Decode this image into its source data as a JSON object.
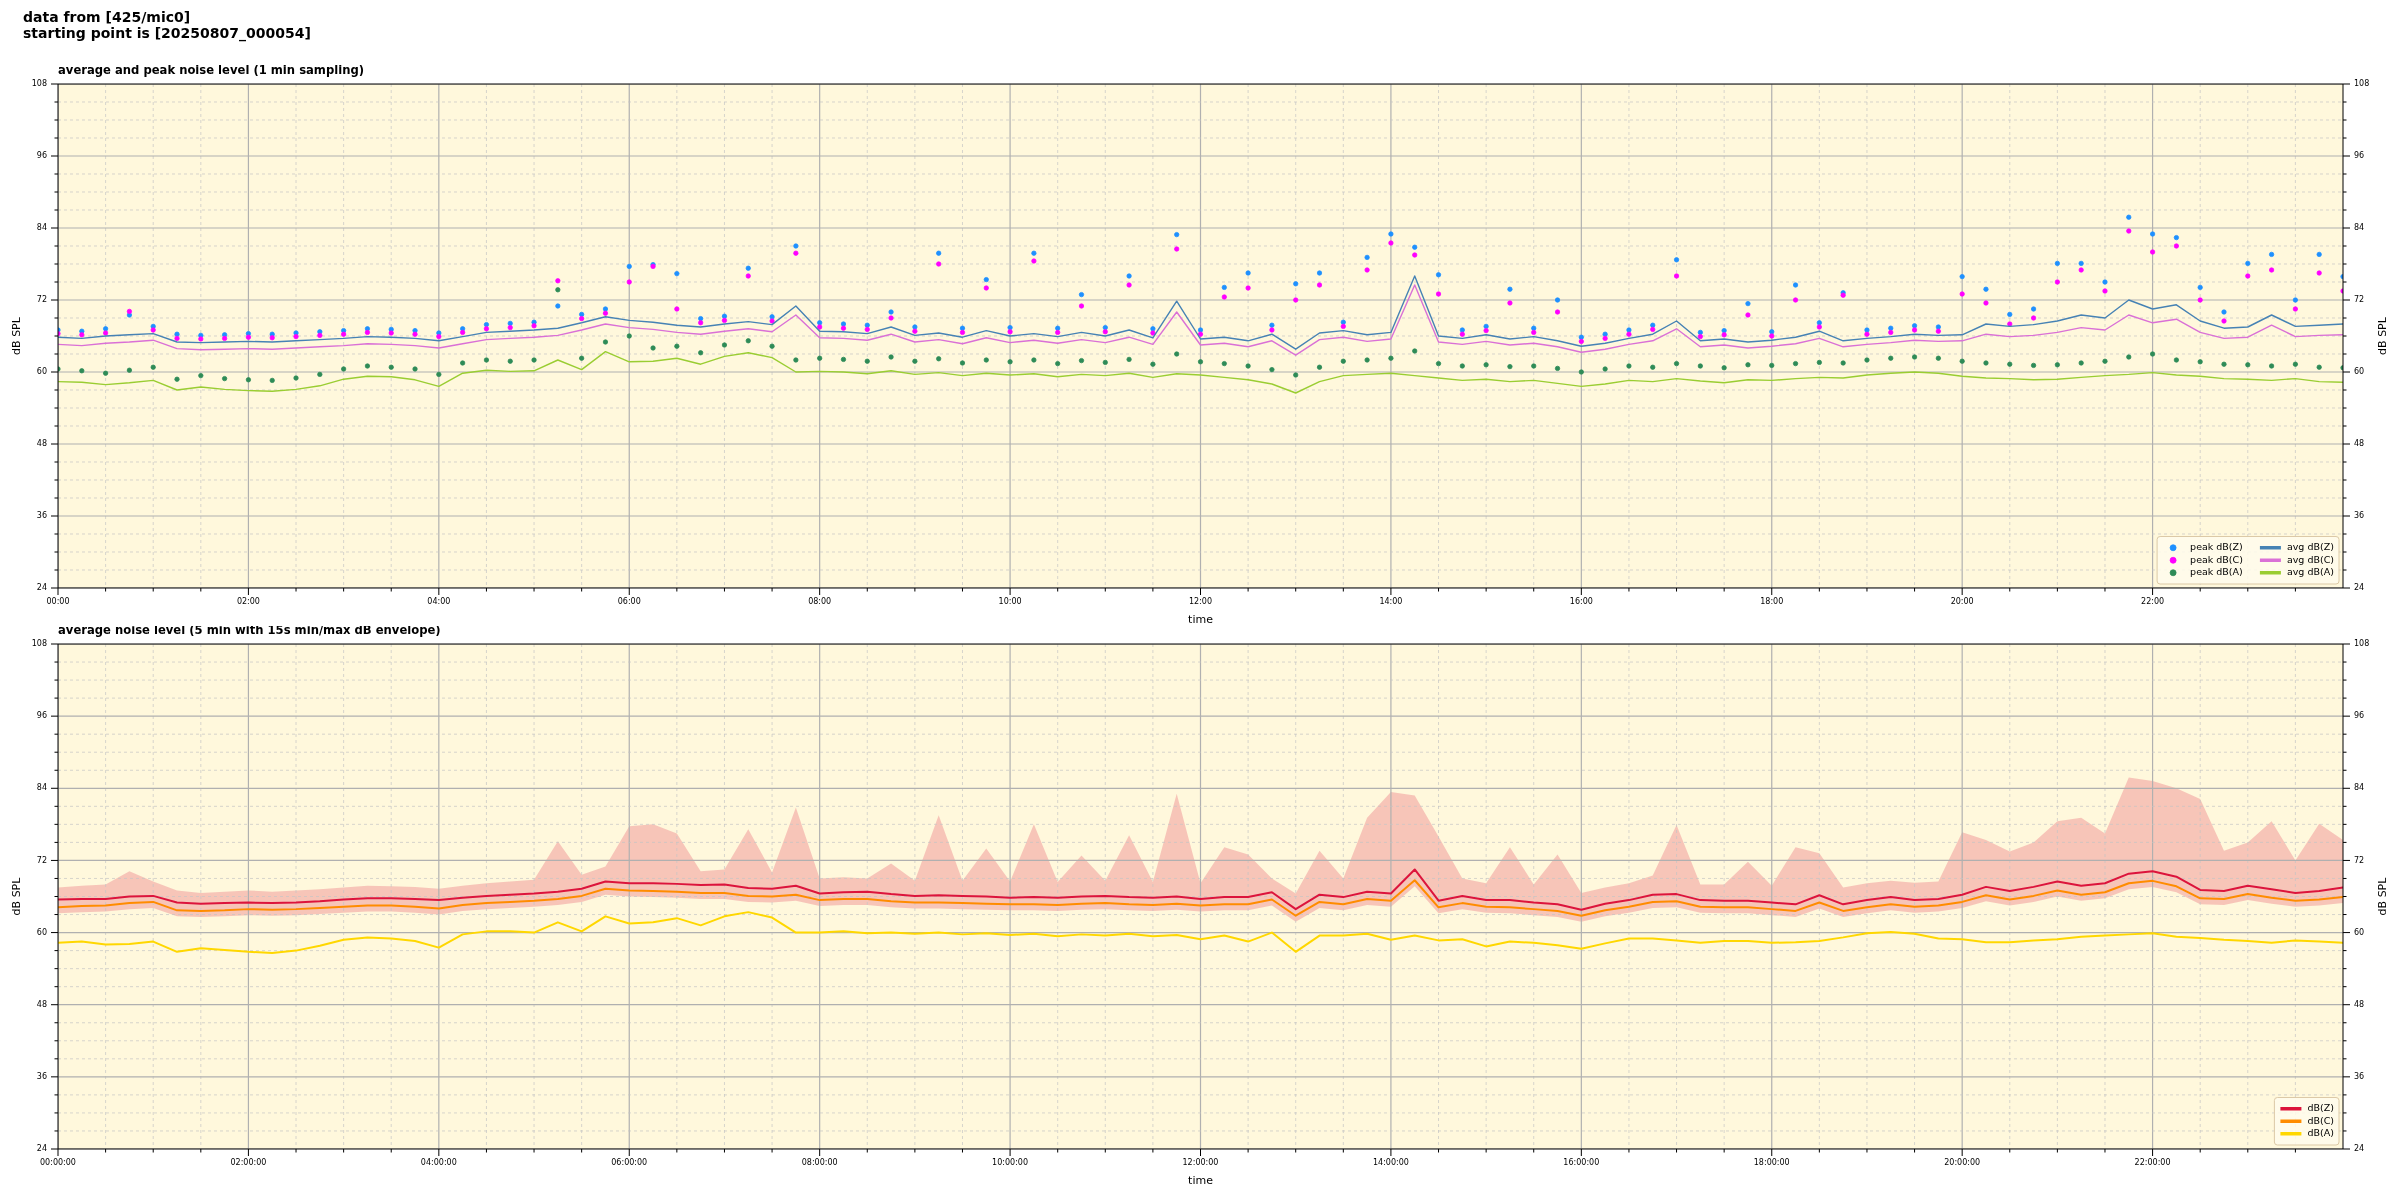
{
  "chart_data": [
    {
      "type": "line",
      "title": "average and peak noise level (1 min sampling)",
      "xlabel": "time",
      "ylabel": "dB SPL",
      "y2label": "dB SPL",
      "annotations": [
        "data from [425/mic0]",
        "starting point is [20250807_000054]"
      ],
      "x": [
        0,
        0.25,
        0.5,
        0.75,
        1,
        1.25,
        1.5,
        1.75,
        2,
        2.25,
        2.5,
        2.75,
        3,
        3.25,
        3.5,
        3.75,
        4,
        4.25,
        4.5,
        4.75,
        5,
        5.25,
        5.5,
        5.75,
        6,
        6.25,
        6.5,
        6.75,
        7,
        7.25,
        7.5,
        7.75,
        8,
        8.25,
        8.5,
        8.75,
        9,
        9.25,
        9.5,
        9.75,
        10,
        10.25,
        10.5,
        10.75,
        11,
        11.25,
        11.5,
        11.75,
        12,
        12.25,
        12.5,
        12.75,
        13,
        13.25,
        13.5,
        13.75,
        14,
        14.25,
        14.5,
        14.75,
        15,
        15.25,
        15.5,
        15.75,
        16,
        16.25,
        16.5,
        16.75,
        17,
        17.25,
        17.5,
        17.75,
        18,
        18.25,
        18.5,
        18.75,
        19,
        19.25,
        19.5,
        19.75,
        20,
        20.25,
        20.5,
        20.75,
        21,
        21.25,
        21.5,
        21.75,
        22,
        22.25,
        22.5,
        22.75,
        23,
        23.25,
        23.5,
        23.75,
        24
      ],
      "series": [
        {
          "name": "peak dB(Z)",
          "type": "scatter",
          "marker": "circle",
          "color": "#1e90ff",
          "values": [
            67.0,
            66.8,
            67.2,
            69.5,
            67.6,
            66.3,
            66.1,
            66.2,
            66.4,
            66.3,
            66.5,
            66.7,
            66.9,
            67.2,
            67.1,
            66.9,
            66.5,
            67.2,
            67.9,
            68.1,
            68.3,
            71.0,
            69.6,
            70.5,
            77.6,
            77.9,
            76.4,
            68.9,
            69.3,
            77.3,
            69.2,
            81.0,
            68.2,
            68.0,
            67.8,
            70.0,
            67.5,
            79.8,
            67.3,
            75.4,
            67.4,
            79.8,
            67.3,
            72.9,
            67.4,
            76.0,
            67.2,
            82.9,
            67.0,
            74.1,
            76.5,
            67.8,
            74.7,
            76.5,
            68.3,
            79.1,
            83.0,
            80.8,
            76.2,
            67.0,
            67.6,
            73.8,
            67.3,
            72.0,
            65.8,
            66.3,
            67.0,
            67.8,
            78.7,
            66.6,
            66.9,
            71.4,
            66.7,
            74.5,
            68.2,
            73.2,
            67.0,
            67.3,
            67.7,
            67.5,
            75.9,
            73.8,
            69.6,
            70.5,
            78.1,
            78.1,
            75.0,
            85.8,
            83.0,
            82.4,
            74.1,
            70.0,
            78.1,
            79.6,
            72.0,
            79.6,
            75.9
          ]
        },
        {
          "name": "peak dB(C)",
          "type": "scatter",
          "marker": "circle",
          "color": "#ff00ff",
          "values": [
            66.4,
            66.2,
            66.5,
            70.1,
            67.0,
            65.6,
            65.5,
            65.6,
            65.8,
            65.7,
            65.9,
            66.1,
            66.3,
            66.6,
            66.5,
            66.3,
            65.9,
            66.6,
            67.2,
            67.4,
            67.7,
            75.2,
            68.9,
            69.8,
            75.0,
            77.6,
            70.5,
            68.2,
            68.6,
            76.0,
            68.5,
            79.8,
            67.5,
            67.3,
            67.1,
            69.0,
            66.8,
            78.0,
            66.6,
            74.0,
            66.7,
            78.5,
            66.6,
            71.0,
            66.7,
            74.5,
            66.5,
            80.5,
            66.3,
            72.5,
            74.0,
            67.0,
            72.0,
            74.5,
            67.6,
            77.0,
            81.5,
            79.5,
            73.0,
            66.3,
            66.9,
            71.5,
            66.6,
            70.0,
            65.1,
            65.6,
            66.3,
            67.1,
            76.0,
            65.9,
            66.2,
            69.5,
            66.0,
            72.0,
            67.5,
            72.8,
            66.3,
            66.6,
            67.0,
            66.8,
            73.0,
            71.5,
            68.0,
            69.0,
            75.0,
            77.0,
            73.5,
            83.5,
            80.0,
            81.0,
            72.0,
            68.5,
            76.0,
            77.0,
            70.5,
            76.5,
            73.5
          ]
        },
        {
          "name": "peak dB(A)",
          "type": "scatter",
          "marker": "circle",
          "color": "#2e8b57",
          "values": [
            60.5,
            60.2,
            59.8,
            60.3,
            60.8,
            58.8,
            59.4,
            58.9,
            58.7,
            58.6,
            59.0,
            59.6,
            60.5,
            61.0,
            60.8,
            60.5,
            59.6,
            61.5,
            62.0,
            61.8,
            62.0,
            73.7,
            62.3,
            65.0,
            66.0,
            64.0,
            64.3,
            63.2,
            64.5,
            65.2,
            64.3,
            62.0,
            62.3,
            62.1,
            61.8,
            62.5,
            61.8,
            62.2,
            61.5,
            62.0,
            61.7,
            62.0,
            61.4,
            61.9,
            61.6,
            62.1,
            61.3,
            63.0,
            61.7,
            61.4,
            61.0,
            60.4,
            59.5,
            60.8,
            61.8,
            62.0,
            62.3,
            63.5,
            61.4,
            61.0,
            61.2,
            60.9,
            61.0,
            60.6,
            60.0,
            60.5,
            61.0,
            60.8,
            61.4,
            61.0,
            60.7,
            61.2,
            61.1,
            61.4,
            61.6,
            61.5,
            62.0,
            62.3,
            62.5,
            62.3,
            61.8,
            61.5,
            61.3,
            61.1,
            61.2,
            61.5,
            61.8,
            62.5,
            63.0,
            62.0,
            61.7,
            61.3,
            61.2,
            61.0,
            61.3,
            60.8,
            60.7
          ]
        },
        {
          "name": "avg dB(Z)",
          "color": "#4682b4",
          "values": [
            65.8,
            65.6,
            66.0,
            66.2,
            66.4,
            65.0,
            64.9,
            65.0,
            65.1,
            65.0,
            65.2,
            65.4,
            65.6,
            65.9,
            65.8,
            65.6,
            65.2,
            65.9,
            66.6,
            66.8,
            67.0,
            67.3,
            68.2,
            69.2,
            68.6,
            68.3,
            67.8,
            67.5,
            68.0,
            68.4,
            67.9,
            71.0,
            66.8,
            66.7,
            66.4,
            67.5,
            66.1,
            66.5,
            65.8,
            66.9,
            66.0,
            66.4,
            65.9,
            66.6,
            66.0,
            67.0,
            65.7,
            71.8,
            65.5,
            65.8,
            65.2,
            66.3,
            63.8,
            66.5,
            66.9,
            66.2,
            66.6,
            76.0,
            66.0,
            65.6,
            66.2,
            65.5,
            65.9,
            65.2,
            64.3,
            64.8,
            65.6,
            66.3,
            68.5,
            65.2,
            65.5,
            65.0,
            65.3,
            65.8,
            66.8,
            65.2,
            65.6,
            65.9,
            66.3,
            66.1,
            66.2,
            68.0,
            67.6,
            67.9,
            68.5,
            69.5,
            69.0,
            72.0,
            70.5,
            71.2,
            68.5,
            67.3,
            67.5,
            69.5,
            67.6,
            67.8,
            68.0
          ]
        },
        {
          "name": "avg dB(C)",
          "color": "#da70d6",
          "values": [
            64.6,
            64.4,
            64.8,
            65.0,
            65.3,
            63.9,
            63.7,
            63.8,
            63.9,
            63.8,
            64.0,
            64.2,
            64.4,
            64.7,
            64.6,
            64.4,
            64.0,
            64.7,
            65.4,
            65.6,
            65.8,
            66.1,
            67.0,
            68.0,
            67.4,
            67.1,
            66.6,
            66.3,
            66.8,
            67.2,
            66.7,
            69.5,
            65.7,
            65.6,
            65.3,
            66.3,
            65.0,
            65.4,
            64.7,
            65.7,
            64.9,
            65.3,
            64.8,
            65.4,
            64.9,
            65.8,
            64.6,
            70.0,
            64.5,
            64.8,
            64.2,
            65.2,
            62.8,
            65.4,
            65.8,
            65.1,
            65.5,
            74.5,
            65.0,
            64.6,
            65.1,
            64.5,
            64.8,
            64.2,
            63.3,
            63.8,
            64.6,
            65.2,
            67.2,
            64.2,
            64.5,
            64.0,
            64.3,
            64.7,
            65.6,
            64.2,
            64.6,
            64.9,
            65.3,
            65.1,
            65.2,
            66.3,
            65.9,
            66.1,
            66.6,
            67.4,
            67.0,
            69.5,
            68.2,
            68.8,
            66.6,
            65.6,
            65.8,
            67.8,
            65.9,
            66.1,
            66.2
          ]
        },
        {
          "name": "avg dB(A)",
          "color": "#9acd32",
          "values": [
            58.4,
            58.3,
            57.9,
            58.2,
            58.6,
            57.0,
            57.5,
            57.1,
            56.9,
            56.8,
            57.1,
            57.7,
            58.8,
            59.3,
            59.2,
            58.7,
            57.6,
            59.8,
            60.3,
            60.1,
            60.2,
            62.0,
            60.4,
            63.4,
            61.7,
            61.8,
            62.3,
            61.3,
            62.6,
            63.2,
            62.4,
            60.0,
            60.1,
            60.0,
            59.7,
            60.2,
            59.6,
            59.9,
            59.4,
            59.8,
            59.5,
            59.7,
            59.2,
            59.6,
            59.4,
            59.8,
            59.1,
            59.7,
            59.5,
            59.1,
            58.7,
            58.0,
            56.5,
            58.4,
            59.4,
            59.6,
            59.8,
            59.4,
            59.0,
            58.6,
            58.8,
            58.4,
            58.6,
            58.1,
            57.6,
            58.0,
            58.6,
            58.4,
            58.9,
            58.5,
            58.2,
            58.7,
            58.6,
            58.9,
            59.1,
            59.0,
            59.5,
            59.8,
            60.0,
            59.8,
            59.3,
            59.0,
            58.9,
            58.7,
            58.8,
            59.1,
            59.4,
            59.6,
            59.9,
            59.5,
            59.3,
            58.9,
            58.8,
            58.6,
            58.9,
            58.4,
            58.3
          ]
        }
      ],
      "xlim": [
        0,
        24
      ],
      "xticks": [
        {
          "value": 0,
          "label": "00:00"
        },
        {
          "value": 0.5,
          "label": null
        },
        {
          "value": 1,
          "label": null
        },
        {
          "value": 1.5,
          "label": null
        },
        {
          "value": 2,
          "label": "02:00"
        },
        {
          "value": 2.5,
          "label": null
        },
        {
          "value": 3,
          "label": null
        },
        {
          "value": 3.5,
          "label": null
        },
        {
          "value": 4,
          "label": "04:00"
        },
        {
          "value": 4.5,
          "label": null
        },
        {
          "value": 5,
          "label": null
        },
        {
          "value": 5.5,
          "label": null
        },
        {
          "value": 6,
          "label": "06:00"
        },
        {
          "value": 6.5,
          "label": null
        },
        {
          "value": 7,
          "label": null
        },
        {
          "value": 7.5,
          "label": null
        },
        {
          "value": 8,
          "label": "08:00"
        },
        {
          "value": 8.5,
          "label": null
        },
        {
          "value": 9,
          "label": null
        },
        {
          "value": 9.5,
          "label": null
        },
        {
          "value": 10,
          "label": "10:00"
        },
        {
          "value": 10.5,
          "label": null
        },
        {
          "value": 11,
          "label": null
        },
        {
          "value": 11.5,
          "label": null
        },
        {
          "value": 12,
          "label": "12:00"
        },
        {
          "value": 12.5,
          "label": null
        },
        {
          "value": 13,
          "label": null
        },
        {
          "value": 13.5,
          "label": null
        },
        {
          "value": 14,
          "label": "14:00"
        },
        {
          "value": 14.5,
          "label": null
        },
        {
          "value": 15,
          "label": null
        },
        {
          "value": 15.5,
          "label": null
        },
        {
          "value": 16,
          "label": "16:00"
        },
        {
          "value": 16.5,
          "label": null
        },
        {
          "value": 17,
          "label": null
        },
        {
          "value": 17.5,
          "label": null
        },
        {
          "value": 18,
          "label": "18:00"
        },
        {
          "value": 18.5,
          "label": null
        },
        {
          "value": 19,
          "label": null
        },
        {
          "value": 19.5,
          "label": null
        },
        {
          "value": 20,
          "label": "20:00"
        },
        {
          "value": 20.5,
          "label": null
        },
        {
          "value": 21,
          "label": null
        },
        {
          "value": 21.5,
          "label": null
        },
        {
          "value": 22,
          "label": "22:00"
        },
        {
          "value": 22.5,
          "label": null
        },
        {
          "value": 23,
          "label": null
        },
        {
          "value": 23.5,
          "label": null
        }
      ],
      "ylim": [
        24,
        108
      ],
      "yticks": [
        24,
        {
          "value": 27,
          "label": null
        },
        {
          "value": 30,
          "label": null
        },
        {
          "value": 33,
          "label": null
        },
        36,
        {
          "value": 39,
          "label": null
        },
        {
          "value": 42,
          "label": null
        },
        {
          "value": 45,
          "label": null
        },
        48,
        {
          "value": 51,
          "label": null
        },
        {
          "value": 54,
          "label": null
        },
        {
          "value": 57,
          "label": null
        },
        60,
        {
          "value": 63,
          "label": null
        },
        {
          "value": 66,
          "label": null
        },
        {
          "value": 69,
          "label": null
        },
        72,
        {
          "value": 75,
          "label": null
        },
        {
          "value": 78,
          "label": null
        },
        {
          "value": 81,
          "label": null
        },
        84,
        {
          "value": 87,
          "label": null
        },
        {
          "value": 90,
          "label": null
        },
        {
          "value": 93,
          "label": null
        },
        96,
        {
          "value": 99,
          "label": null
        },
        {
          "value": 102,
          "label": null
        },
        {
          "value": 105,
          "label": null
        },
        108
      ],
      "y2lim": [
        24,
        108
      ],
      "y2ticks": [
        24,
        {
          "value": 27,
          "label": null
        },
        {
          "value": 30,
          "label": null
        },
        {
          "value": 33,
          "label": null
        },
        36,
        {
          "value": 39,
          "label": null
        },
        {
          "value": 42,
          "label": null
        },
        {
          "value": 45,
          "label": null
        },
        48,
        {
          "value": 51,
          "label": null
        },
        {
          "value": 54,
          "label": null
        },
        {
          "value": 57,
          "label": null
        },
        60,
        {
          "value": 63,
          "label": null
        },
        {
          "value": 66,
          "label": null
        },
        {
          "value": 69,
          "label": null
        },
        72,
        {
          "value": 75,
          "label": null
        },
        {
          "value": 78,
          "label": null
        },
        {
          "value": 81,
          "label": null
        },
        84,
        {
          "value": 87,
          "label": null
        },
        {
          "value": 90,
          "label": null
        },
        {
          "value": 93,
          "label": null
        },
        96,
        {
          "value": 99,
          "label": null
        },
        {
          "value": 102,
          "label": null
        },
        {
          "value": 105,
          "label": null
        },
        108
      ],
      "grid": true,
      "legend": "bottom right"
    },
    {
      "type": "line",
      "title": "average noise level (5 min with 15s min/max dB envelope)",
      "xlabel": "time",
      "ylabel": "dB SPL",
      "y2label": "dB SPL",
      "x": [
        0,
        0.25,
        0.5,
        0.75,
        1,
        1.25,
        1.5,
        1.75,
        2,
        2.25,
        2.5,
        2.75,
        3,
        3.25,
        3.5,
        3.75,
        4,
        4.25,
        4.5,
        4.75,
        5,
        5.25,
        5.5,
        5.75,
        6,
        6.25,
        6.5,
        6.75,
        7,
        7.25,
        7.5,
        7.75,
        8,
        8.25,
        8.5,
        8.75,
        9,
        9.25,
        9.5,
        9.75,
        10,
        10.25,
        10.5,
        10.75,
        11,
        11.25,
        11.5,
        11.75,
        12,
        12.25,
        12.5,
        12.75,
        13,
        13.25,
        13.5,
        13.75,
        14,
        14.25,
        14.5,
        14.75,
        15,
        15.25,
        15.5,
        15.75,
        16,
        16.25,
        16.5,
        16.75,
        17,
        17.25,
        17.5,
        17.75,
        18,
        18.25,
        18.5,
        18.75,
        19,
        19.25,
        19.5,
        19.75,
        20,
        20.25,
        20.5,
        20.75,
        21,
        21.25,
        21.5,
        21.75,
        22,
        22.25,
        22.5,
        22.75,
        23,
        23.25,
        23.5,
        23.75,
        24
      ],
      "series": [
        {
          "name": "dB(Z)",
          "color": "#dc143c",
          "values": [
            65.5,
            65.6,
            65.6,
            66.0,
            66.1,
            65.0,
            64.8,
            64.9,
            65.0,
            64.9,
            65.0,
            65.2,
            65.5,
            65.7,
            65.7,
            65.6,
            65.4,
            65.8,
            66.1,
            66.3,
            66.5,
            66.8,
            67.3,
            68.5,
            68.2,
            68.2,
            68.1,
            67.9,
            68.0,
            67.4,
            67.3,
            67.8,
            66.5,
            66.7,
            66.8,
            66.4,
            66.1,
            66.2,
            66.1,
            66.0,
            65.8,
            65.9,
            65.8,
            66.0,
            66.1,
            65.9,
            65.8,
            66.0,
            65.6,
            65.9,
            65.9,
            66.7,
            63.9,
            66.3,
            65.9,
            66.8,
            66.5,
            70.5,
            65.3,
            66.1,
            65.4,
            65.4,
            65.0,
            64.7,
            63.8,
            64.8,
            65.4,
            66.3,
            66.4,
            65.4,
            65.3,
            65.3,
            65.0,
            64.7,
            66.2,
            64.7,
            65.4,
            65.9,
            65.4,
            65.6,
            66.3,
            67.6,
            66.9,
            67.6,
            68.5,
            67.8,
            68.2,
            69.8,
            70.2,
            69.3,
            67.1,
            66.9,
            67.8,
            67.2,
            66.6,
            66.9,
            67.5
          ],
          "upper": [
            67.5,
            67.8,
            68.0,
            70.2,
            68.5,
            67.0,
            66.6,
            66.8,
            67.0,
            66.8,
            67.0,
            67.2,
            67.5,
            67.8,
            67.7,
            67.6,
            67.3,
            67.8,
            68.2,
            68.5,
            68.8,
            75.2,
            69.6,
            71.0,
            77.7,
            78.0,
            76.5,
            70.2,
            70.5,
            77.2,
            70.0,
            80.8,
            69.0,
            69.2,
            69.0,
            71.5,
            68.6,
            79.5,
            68.6,
            74.0,
            68.5,
            78.0,
            68.4,
            72.8,
            68.6,
            76.2,
            68.4,
            83.1,
            68.2,
            74.2,
            73.0,
            69.0,
            66.5,
            73.6,
            69.0,
            79.1,
            83.4,
            82.8,
            76.0,
            69.0,
            68.2,
            74.2,
            68.0,
            73.0,
            66.6,
            67.5,
            68.2,
            69.5,
            77.9,
            68.0,
            68.0,
            71.8,
            67.8,
            74.2,
            73.2,
            67.5,
            68.2,
            68.6,
            68.3,
            68.5,
            76.7,
            75.4,
            73.5,
            75.0,
            78.5,
            79.1,
            76.5,
            85.8,
            85.2,
            84.0,
            82.2,
            73.6,
            75.0,
            78.5,
            72.0,
            78.1,
            75.4
          ],
          "lower": [
            63.2,
            63.4,
            63.5,
            63.9,
            64.1,
            62.7,
            62.6,
            62.7,
            62.9,
            62.8,
            62.9,
            63.1,
            63.3,
            63.5,
            63.5,
            63.3,
            63.0,
            63.6,
            63.9,
            64.1,
            64.3,
            64.6,
            65.1,
            66.3,
            66.0,
            65.9,
            65.8,
            65.6,
            65.6,
            65.1,
            65.0,
            65.3,
            64.4,
            64.6,
            64.6,
            64.2,
            64.0,
            64.0,
            63.9,
            63.8,
            63.7,
            63.7,
            63.6,
            63.8,
            63.9,
            63.7,
            63.6,
            63.8,
            63.5,
            63.7,
            63.7,
            64.5,
            61.8,
            64.1,
            63.7,
            64.6,
            64.3,
            67.7,
            63.2,
            63.9,
            63.3,
            63.2,
            62.9,
            62.6,
            61.8,
            62.7,
            63.3,
            64.1,
            64.2,
            63.3,
            63.2,
            63.2,
            62.9,
            62.6,
            64.0,
            62.6,
            63.2,
            63.7,
            63.3,
            63.5,
            64.1,
            65.2,
            64.5,
            65.1,
            66.0,
            65.3,
            65.7,
            67.2,
            67.6,
            66.7,
            64.7,
            64.6,
            65.4,
            64.8,
            64.3,
            64.5,
            64.9
          ]
        },
        {
          "name": "dB(C)",
          "color": "#ff8c00",
          "values": [
            64.2,
            64.4,
            64.5,
            64.9,
            65.1,
            63.7,
            63.6,
            63.7,
            63.9,
            63.8,
            63.9,
            64.1,
            64.3,
            64.5,
            64.5,
            64.3,
            64.0,
            64.6,
            64.9,
            65.1,
            65.3,
            65.6,
            66.1,
            67.3,
            67.0,
            66.9,
            66.8,
            66.6,
            66.6,
            66.1,
            66.0,
            66.3,
            65.4,
            65.6,
            65.6,
            65.2,
            65.0,
            65.0,
            64.9,
            64.8,
            64.7,
            64.7,
            64.6,
            64.8,
            64.9,
            64.7,
            64.6,
            64.8,
            64.5,
            64.7,
            64.7,
            65.5,
            62.8,
            65.1,
            64.7,
            65.6,
            65.3,
            68.7,
            64.2,
            64.9,
            64.3,
            64.2,
            63.9,
            63.6,
            62.8,
            63.7,
            64.3,
            65.1,
            65.2,
            64.3,
            64.2,
            64.2,
            63.9,
            63.6,
            65.0,
            63.6,
            64.2,
            64.7,
            64.3,
            64.5,
            65.1,
            66.2,
            65.5,
            66.1,
            67.0,
            66.3,
            66.7,
            68.2,
            68.6,
            67.7,
            65.7,
            65.6,
            66.4,
            65.8,
            65.3,
            65.5,
            65.9
          ]
        },
        {
          "name": "dB(A)",
          "color": "#ffd700",
          "values": [
            58.3,
            58.5,
            58.0,
            58.1,
            58.5,
            56.8,
            57.4,
            57.1,
            56.8,
            56.6,
            57.0,
            57.8,
            58.8,
            59.2,
            59.0,
            58.6,
            57.5,
            59.7,
            60.2,
            60.2,
            60.0,
            61.7,
            60.2,
            62.7,
            61.5,
            61.7,
            62.4,
            61.2,
            62.7,
            63.4,
            62.5,
            60.0,
            60.0,
            60.2,
            59.9,
            60.0,
            59.8,
            60.0,
            59.7,
            59.9,
            59.6,
            59.8,
            59.4,
            59.7,
            59.5,
            59.8,
            59.4,
            59.6,
            58.9,
            59.5,
            58.5,
            60.0,
            56.8,
            59.5,
            59.5,
            59.8,
            58.8,
            59.5,
            58.7,
            58.9,
            57.7,
            58.5,
            58.3,
            57.9,
            57.3,
            58.2,
            59.0,
            59.0,
            58.7,
            58.3,
            58.6,
            58.6,
            58.3,
            58.4,
            58.6,
            59.2,
            59.9,
            60.1,
            59.8,
            59.0,
            58.9,
            58.4,
            58.4,
            58.7,
            58.9,
            59.3,
            59.5,
            59.7,
            59.9,
            59.3,
            59.1,
            58.8,
            58.6,
            58.3,
            58.7,
            58.5,
            58.3
          ]
        }
      ],
      "xlim": [
        0,
        24
      ],
      "xticks": [
        {
          "value": 0,
          "label": "00:00:00"
        },
        {
          "value": 0.5,
          "label": null
        },
        {
          "value": 1,
          "label": null
        },
        {
          "value": 1.5,
          "label": null
        },
        {
          "value": 2,
          "label": "02:00:00"
        },
        {
          "value": 2.5,
          "label": null
        },
        {
          "value": 3,
          "label": null
        },
        {
          "value": 3.5,
          "label": null
        },
        {
          "value": 4,
          "label": "04:00:00"
        },
        {
          "value": 4.5,
          "label": null
        },
        {
          "value": 5,
          "label": null
        },
        {
          "value": 5.5,
          "label": null
        },
        {
          "value": 6,
          "label": "06:00:00"
        },
        {
          "value": 6.5,
          "label": null
        },
        {
          "value": 7,
          "label": null
        },
        {
          "value": 7.5,
          "label": null
        },
        {
          "value": 8,
          "label": "08:00:00"
        },
        {
          "value": 8.5,
          "label": null
        },
        {
          "value": 9,
          "label": null
        },
        {
          "value": 9.5,
          "label": null
        },
        {
          "value": 10,
          "label": "10:00:00"
        },
        {
          "value": 10.5,
          "label": null
        },
        {
          "value": 11,
          "label": null
        },
        {
          "value": 11.5,
          "label": null
        },
        {
          "value": 12,
          "label": "12:00:00"
        },
        {
          "value": 12.5,
          "label": null
        },
        {
          "value": 13,
          "label": null
        },
        {
          "value": 13.5,
          "label": null
        },
        {
          "value": 14,
          "label": "14:00:00"
        },
        {
          "value": 14.5,
          "label": null
        },
        {
          "value": 15,
          "label": null
        },
        {
          "value": 15.5,
          "label": null
        },
        {
          "value": 16,
          "label": "16:00:00"
        },
        {
          "value": 16.5,
          "label": null
        },
        {
          "value": 17,
          "label": null
        },
        {
          "value": 17.5,
          "label": null
        },
        {
          "value": 18,
          "label": "18:00:00"
        },
        {
          "value": 18.5,
          "label": null
        },
        {
          "value": 19,
          "label": null
        },
        {
          "value": 19.5,
          "label": null
        },
        {
          "value": 20,
          "label": "20:00:00"
        },
        {
          "value": 20.5,
          "label": null
        },
        {
          "value": 21,
          "label": null
        },
        {
          "value": 21.5,
          "label": null
        },
        {
          "value": 22,
          "label": "22:00:00"
        },
        {
          "value": 22.5,
          "label": null
        },
        {
          "value": 23,
          "label": null
        },
        {
          "value": 23.5,
          "label": null
        }
      ],
      "ylim": [
        24,
        108
      ],
      "yticks": [
        24,
        {
          "value": 27,
          "label": null
        },
        {
          "value": 30,
          "label": null
        },
        {
          "value": 33,
          "label": null
        },
        36,
        {
          "value": 39,
          "label": null
        },
        {
          "value": 42,
          "label": null
        },
        {
          "value": 45,
          "label": null
        },
        48,
        {
          "value": 51,
          "label": null
        },
        {
          "value": 54,
          "label": null
        },
        {
          "value": 57,
          "label": null
        },
        60,
        {
          "value": 63,
          "label": null
        },
        {
          "value": 66,
          "label": null
        },
        {
          "value": 69,
          "label": null
        },
        72,
        {
          "value": 75,
          "label": null
        },
        {
          "value": 78,
          "label": null
        },
        {
          "value": 81,
          "label": null
        },
        84,
        {
          "value": 87,
          "label": null
        },
        {
          "value": 90,
          "label": null
        },
        {
          "value": 93,
          "label": null
        },
        96,
        {
          "value": 99,
          "label": null
        },
        {
          "value": 102,
          "label": null
        },
        {
          "value": 105,
          "label": null
        },
        108
      ],
      "y2lim": [
        24,
        108
      ],
      "y2ticks": [
        24,
        {
          "value": 27,
          "label": null
        },
        {
          "value": 30,
          "label": null
        },
        {
          "value": 33,
          "label": null
        },
        36,
        {
          "value": 39,
          "label": null
        },
        {
          "value": 42,
          "label": null
        },
        {
          "value": 45,
          "label": null
        },
        48,
        {
          "value": 51,
          "label": null
        },
        {
          "value": 54,
          "label": null
        },
        {
          "value": 57,
          "label": null
        },
        60,
        {
          "value": 63,
          "label": null
        },
        {
          "value": 66,
          "label": null
        },
        {
          "value": 69,
          "label": null
        },
        72,
        {
          "value": 75,
          "label": null
        },
        {
          "value": 78,
          "label": null
        },
        {
          "value": 81,
          "label": null
        },
        84,
        {
          "value": 87,
          "label": null
        },
        {
          "value": 90,
          "label": null
        },
        {
          "value": 93,
          "label": null
        },
        96,
        {
          "value": 99,
          "label": null
        },
        {
          "value": 102,
          "label": null
        },
        {
          "value": 105,
          "label": null
        },
        108
      ],
      "grid": true,
      "legend": "bottom right"
    }
  ]
}
